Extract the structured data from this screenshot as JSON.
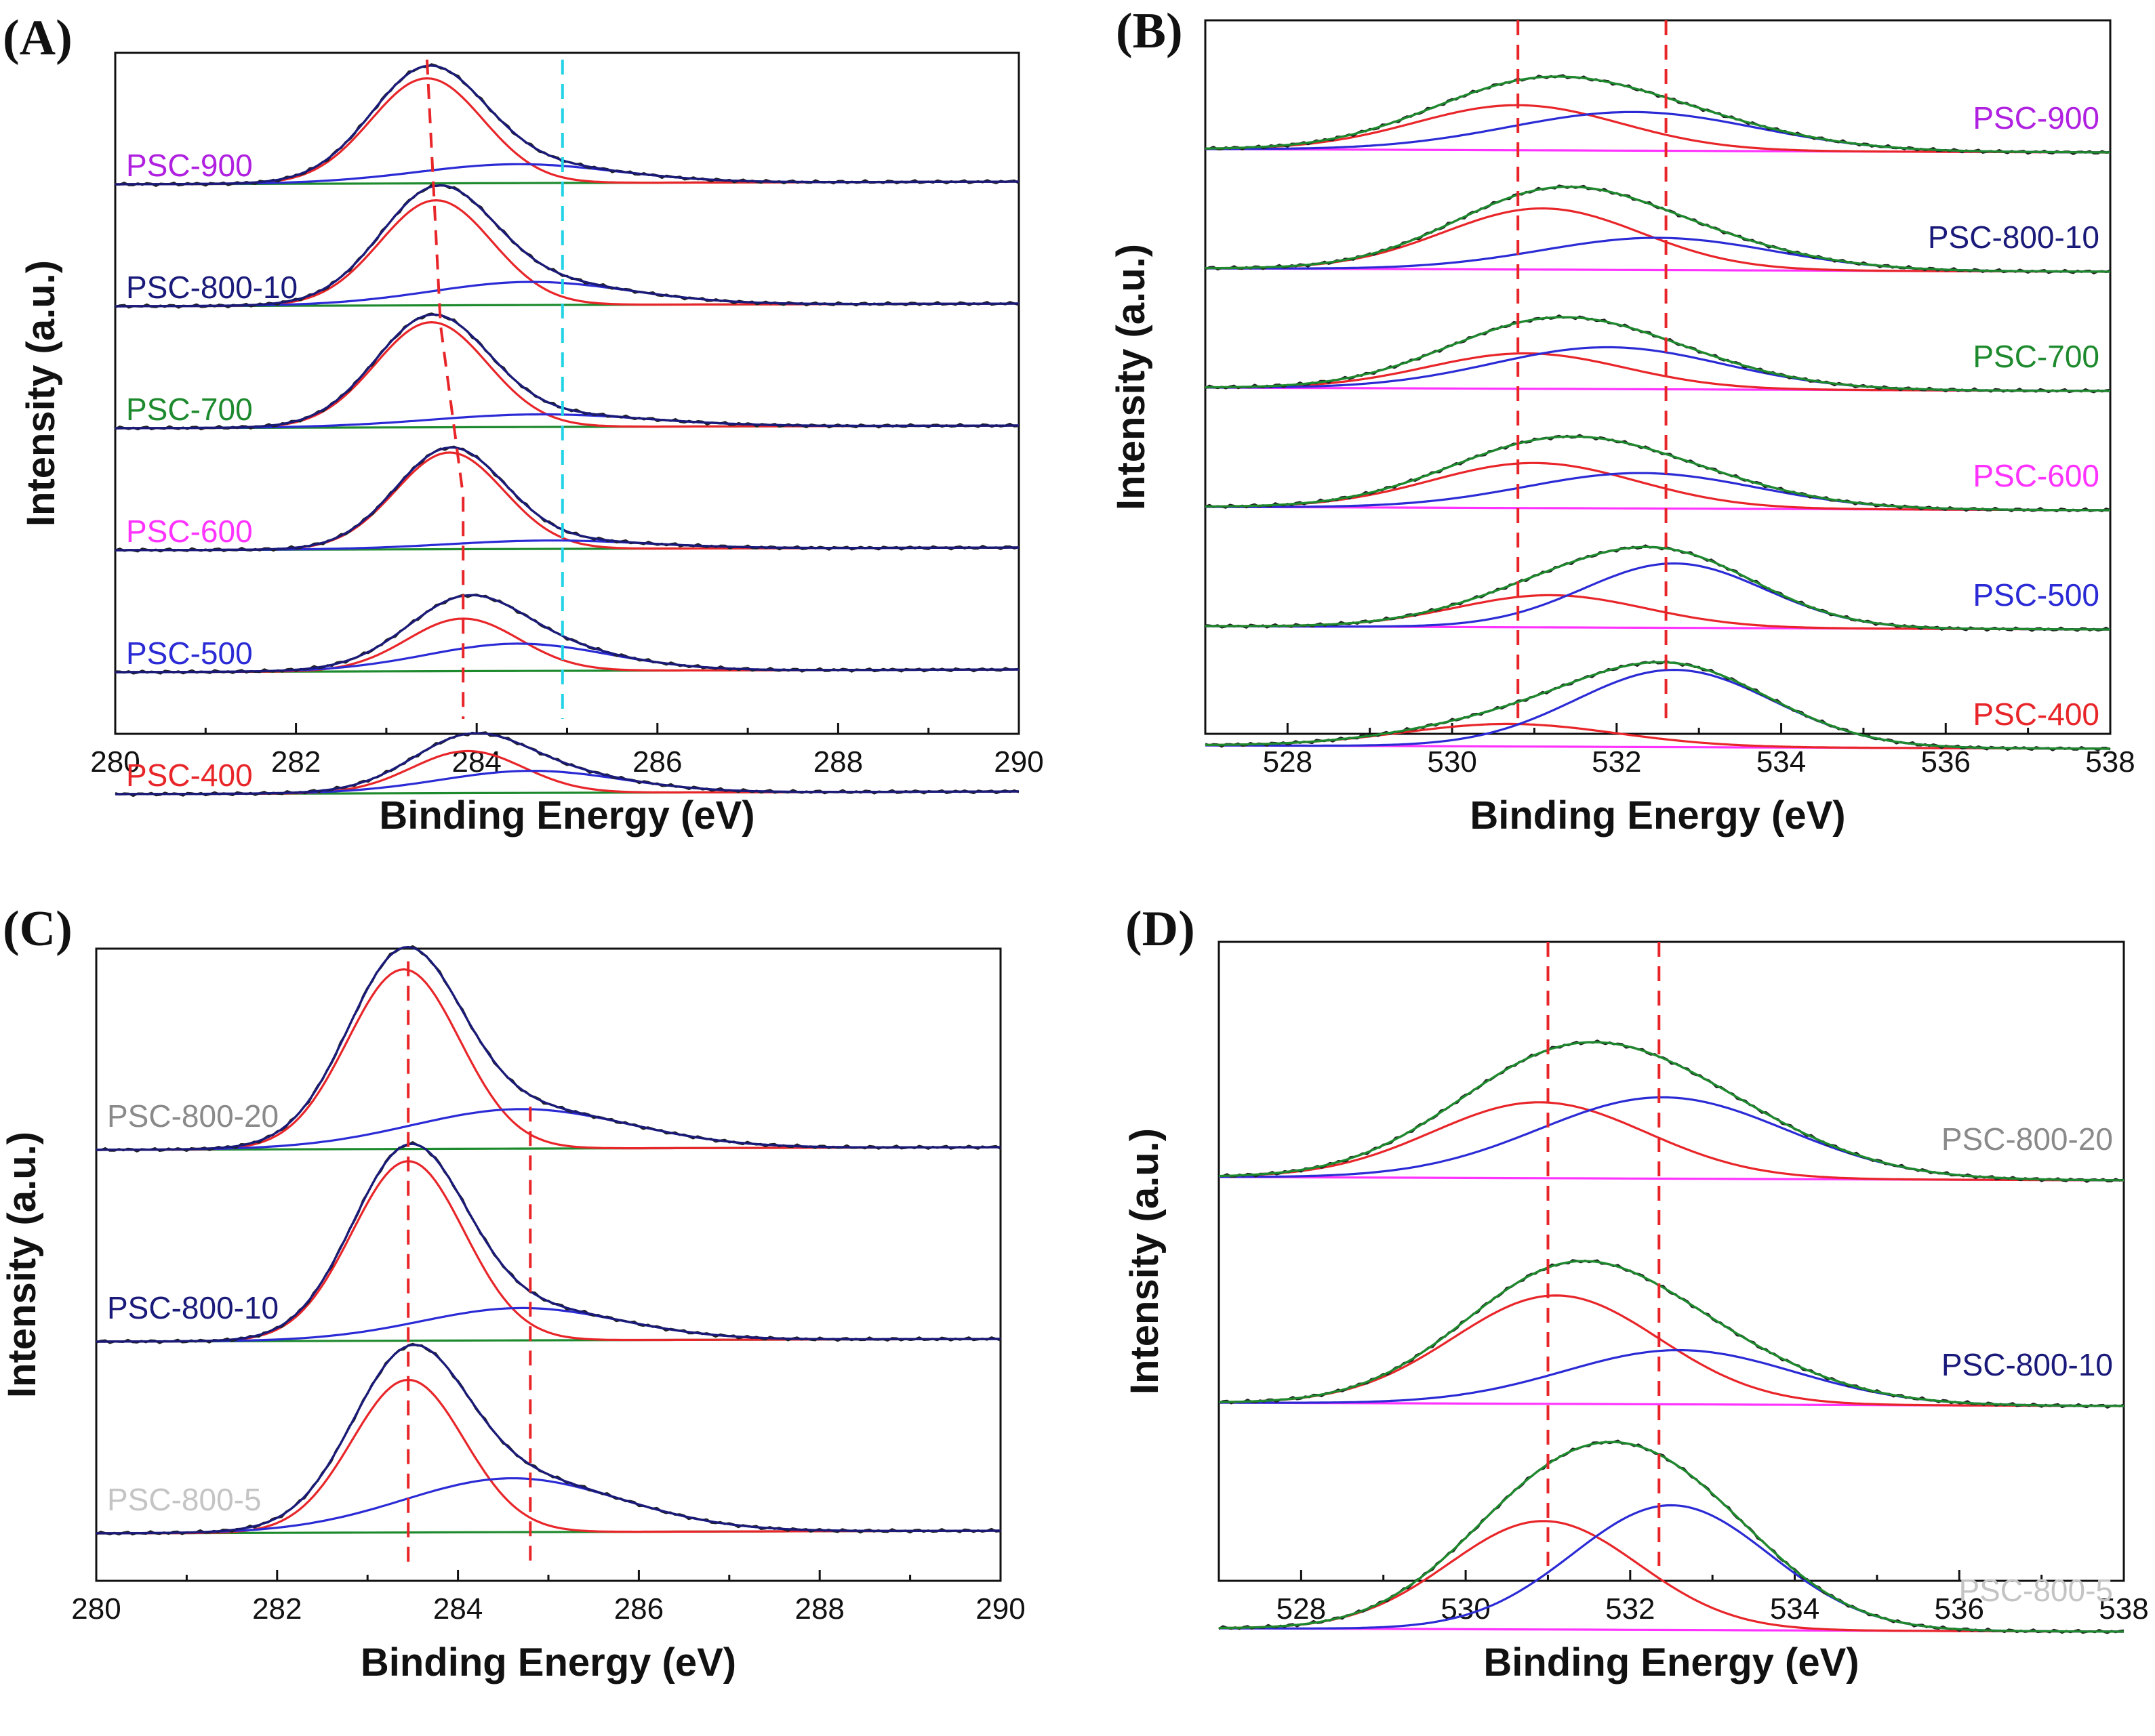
{
  "colors": {
    "envelope_black": "#222222",
    "envelope_green": "#1e8a2e",
    "navy": "#1a1a7a",
    "red": "#e8262a",
    "blue": "#2b2bd6",
    "green": "#1e8a2e",
    "magenta": "#ff33ff",
    "cyan": "#22d3e6",
    "purple": "#b020e0",
    "gray": "#8a8a8a",
    "lightgray": "#c4c4c4"
  },
  "chart_data": [
    {
      "type": "line",
      "panel": "(A)",
      "title": "",
      "xlabel": "Binding Energy (eV)",
      "ylabel": "Intensity (a.u.)",
      "xlim": [
        280,
        290
      ],
      "x_ticks": [
        "280",
        "282",
        "284",
        "286",
        "288",
        "290"
      ],
      "y_ticks": [],
      "grid": false,
      "legend": "inline labels on the left of each trace",
      "series": [
        {
          "name": "PSC-900",
          "label_color": "#b020e0",
          "baseline": 1.0,
          "peaks": [
            {
              "center": 283.45,
              "width": 0.62,
              "height": 1.0
            },
            {
              "center": 284.45,
              "width": 1.1,
              "height": 0.18
            }
          ]
        },
        {
          "name": "PSC-800-10",
          "label_color": "#1a1a7a",
          "baseline": 1.0,
          "peaks": [
            {
              "center": 283.55,
              "width": 0.62,
              "height": 1.0
            },
            {
              "center": 284.6,
              "width": 1.1,
              "height": 0.22
            }
          ]
        },
        {
          "name": "PSC-700",
          "label_color": "#1e8a2e",
          "baseline": 1.0,
          "peaks": [
            {
              "center": 283.5,
              "width": 0.62,
              "height": 1.0
            },
            {
              "center": 284.7,
              "width": 1.2,
              "height": 0.12
            }
          ]
        },
        {
          "name": "PSC-600",
          "label_color": "#ff33ff",
          "baseline": 1.0,
          "peaks": [
            {
              "center": 283.7,
              "width": 0.6,
              "height": 0.92
            },
            {
              "center": 284.8,
              "width": 1.1,
              "height": 0.08
            }
          ]
        },
        {
          "name": "PSC-500",
          "label_color": "#2b2bd6",
          "baseline": 1.0,
          "peaks": [
            {
              "center": 283.85,
              "width": 0.62,
              "height": 0.5
            },
            {
              "center": 284.45,
              "width": 1.0,
              "height": 0.26
            }
          ]
        },
        {
          "name": "PSC-400",
          "label_color": "#e8262a",
          "baseline": 1.0,
          "peaks": [
            {
              "center": 283.9,
              "width": 0.62,
              "height": 0.4
            },
            {
              "center": 284.6,
              "width": 1.0,
              "height": 0.21
            }
          ]
        }
      ],
      "guides": [
        {
          "color": "#e8262a",
          "points": [
            [
              283.45,
              0.99
            ],
            [
              283.6,
              0.6
            ],
            [
              283.85,
              0.35
            ],
            [
              283.85,
              0.0
            ]
          ]
        },
        {
          "color": "#22d3e6",
          "points": [
            [
              284.95,
              0.99
            ],
            [
              284.95,
              0.0
            ]
          ]
        }
      ]
    },
    {
      "type": "line",
      "panel": "(B)",
      "title": "",
      "xlabel": "Binding Energy (eV)",
      "ylabel": "Intensity (a.u.)",
      "xlim": [
        527,
        538
      ],
      "x_ticks": [
        "528",
        "530",
        "532",
        "534",
        "536",
        "538"
      ],
      "y_ticks": [],
      "grid": false,
      "legend": "inline labels on the right of each trace",
      "series": [
        {
          "name": "PSC-900",
          "label_color": "#b020e0",
          "baseline": 0.5,
          "peaks": [
            {
              "center": 530.8,
              "width": 1.25,
              "height": 0.7
            },
            {
              "center": 532.2,
              "width": 1.5,
              "height": 0.6
            }
          ]
        },
        {
          "name": "PSC-800-10",
          "label_color": "#1a1a7a",
          "baseline": 0.5,
          "peaks": [
            {
              "center": 531.1,
              "width": 1.2,
              "height": 0.95
            },
            {
              "center": 532.5,
              "width": 1.4,
              "height": 0.5
            }
          ]
        },
        {
          "name": "PSC-700",
          "label_color": "#1e8a2e",
          "baseline": 0.5,
          "peaks": [
            {
              "center": 530.9,
              "width": 1.2,
              "height": 0.55
            },
            {
              "center": 531.9,
              "width": 1.4,
              "height": 0.65
            }
          ]
        },
        {
          "name": "PSC-600",
          "label_color": "#ff33ff",
          "baseline": 0.5,
          "peaks": [
            {
              "center": 531.0,
              "width": 1.25,
              "height": 0.7
            },
            {
              "center": 532.3,
              "width": 1.4,
              "height": 0.55
            }
          ]
        },
        {
          "name": "PSC-500",
          "label_color": "#2b2bd6",
          "baseline": 0.5,
          "peaks": [
            {
              "center": 531.2,
              "width": 1.15,
              "height": 0.5
            },
            {
              "center": 532.7,
              "width": 1.1,
              "height": 1.0
            }
          ]
        },
        {
          "name": "PSC-400",
          "label_color": "#e8262a",
          "baseline": 0.5,
          "peaks": [
            {
              "center": 530.7,
              "width": 1.3,
              "height": 0.35
            },
            {
              "center": 532.7,
              "width": 1.2,
              "height": 1.2
            }
          ]
        }
      ],
      "guides": [
        {
          "color": "#e8262a",
          "points": [
            [
              530.8,
              1.0
            ],
            [
              530.8,
              0.0
            ]
          ]
        },
        {
          "color": "#e8262a",
          "points": [
            [
              532.6,
              1.0
            ],
            [
              532.6,
              0.0
            ]
          ]
        }
      ]
    },
    {
      "type": "line",
      "panel": "(C)",
      "title": "",
      "xlabel": "Binding Energy (eV)",
      "ylabel": "Intensity (a.u.)",
      "xlim": [
        280,
        290
      ],
      "x_ticks": [
        "280",
        "282",
        "284",
        "286",
        "288",
        "290"
      ],
      "y_ticks": [],
      "grid": false,
      "legend": "inline labels on the left of each trace",
      "series": [
        {
          "name": "PSC-800-20",
          "label_color": "#8a8a8a",
          "baseline": 1.0,
          "peaks": [
            {
              "center": 283.4,
              "width": 0.62,
              "height": 1.0
            },
            {
              "center": 284.7,
              "width": 1.2,
              "height": 0.22
            }
          ]
        },
        {
          "name": "PSC-800-10",
          "label_color": "#1a1a7a",
          "baseline": 1.0,
          "peaks": [
            {
              "center": 283.45,
              "width": 0.62,
              "height": 1.0
            },
            {
              "center": 284.7,
              "width": 1.1,
              "height": 0.18
            }
          ]
        },
        {
          "name": "PSC-800-5",
          "label_color": "#c4c4c4",
          "baseline": 1.0,
          "peaks": [
            {
              "center": 283.45,
              "width": 0.62,
              "height": 0.85
            },
            {
              "center": 284.6,
              "width": 1.2,
              "height": 0.3
            }
          ]
        }
      ],
      "guides": [
        {
          "color": "#e8262a",
          "points": [
            [
              283.45,
              0.98
            ],
            [
              283.45,
              0.0
            ]
          ]
        },
        {
          "color": "#e8262a",
          "points": [
            [
              284.8,
              0.75
            ],
            [
              284.8,
              0.0
            ]
          ]
        }
      ]
    },
    {
      "type": "line",
      "panel": "(D)",
      "title": "",
      "xlabel": "Binding Energy (eV)",
      "ylabel": "Intensity (a.u.)",
      "xlim": [
        527,
        538
      ],
      "x_ticks": [
        "528",
        "530",
        "532",
        "534",
        "536",
        "538"
      ],
      "y_ticks": [],
      "grid": false,
      "legend": "inline labels on the right of each trace",
      "series": [
        {
          "name": "PSC-800-20",
          "label_color": "#8a8a8a",
          "baseline": 0.5,
          "peaks": [
            {
              "center": 530.9,
              "width": 1.3,
              "height": 0.7
            },
            {
              "center": 532.4,
              "width": 1.5,
              "height": 0.75
            }
          ]
        },
        {
          "name": "PSC-800-10",
          "label_color": "#1a1a7a",
          "baseline": 0.5,
          "peaks": [
            {
              "center": 531.1,
              "width": 1.25,
              "height": 1.0
            },
            {
              "center": 532.6,
              "width": 1.4,
              "height": 0.5
            }
          ]
        },
        {
          "name": "PSC-800-5",
          "label_color": "#c4c4c4",
          "baseline": 0.5,
          "peaks": [
            {
              "center": 530.95,
              "width": 1.15,
              "height": 1.0
            },
            {
              "center": 532.5,
              "width": 1.2,
              "height": 1.15
            }
          ]
        }
      ],
      "guides": [
        {
          "color": "#e8262a",
          "points": [
            [
              531.0,
              1.0
            ],
            [
              531.0,
              0.0
            ]
          ]
        },
        {
          "color": "#e8262a",
          "points": [
            [
              532.35,
              1.0
            ],
            [
              532.35,
              0.0
            ]
          ]
        }
      ]
    }
  ]
}
